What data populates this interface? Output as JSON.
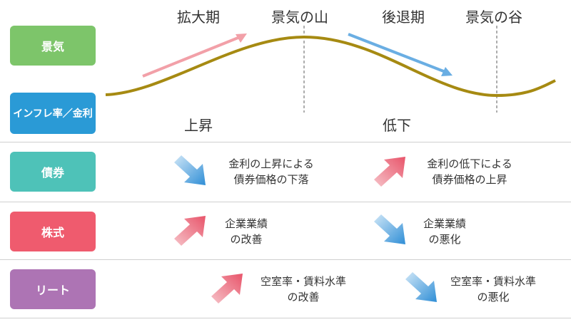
{
  "phases": [
    "拡大期",
    "景気の山",
    "後退期",
    "景気の谷"
  ],
  "rows": {
    "economy": {
      "label": "景気",
      "color": "#7dc56a"
    },
    "inflation": {
      "label": "インフレ率／金利",
      "color": "#2a9ad6"
    },
    "bonds": {
      "label": "債券",
      "color": "#4ec2b8"
    },
    "stocks": {
      "label": "株式",
      "color": "#ef5b6e"
    },
    "reit": {
      "label": "リート",
      "color": "#ad74b4"
    }
  },
  "inflation_direction": {
    "rise": "上昇",
    "fall": "低下"
  },
  "bonds": {
    "left": [
      "金利の上昇による",
      "債券価格の下落"
    ],
    "right": [
      "金利の低下による",
      "債券価格の上昇"
    ]
  },
  "stocks": {
    "left": [
      "企業業績",
      "の改善"
    ],
    "right": [
      "企業業績",
      "の悪化"
    ]
  },
  "reit": {
    "left": [
      "空室率・賃料水準",
      "の改善"
    ],
    "right": [
      "空室率・賃料水準",
      "の悪化"
    ]
  },
  "colors": {
    "curve": "#a68a12",
    "up_arrow": "#f2a0a8",
    "down_arrow": "#6aaee3",
    "divider": "#777777"
  }
}
